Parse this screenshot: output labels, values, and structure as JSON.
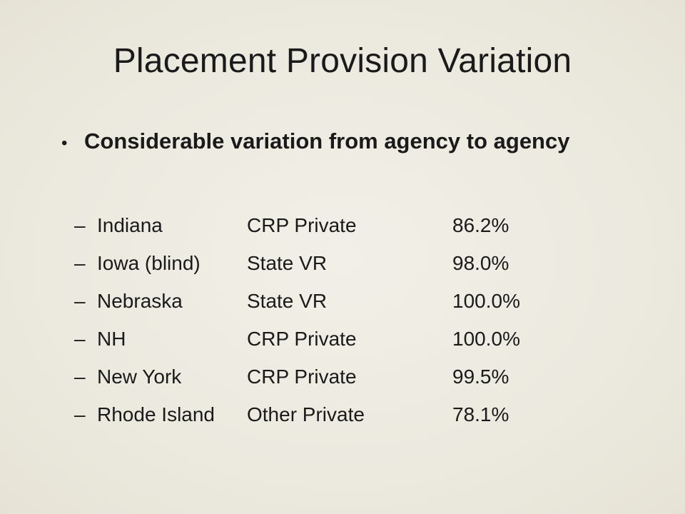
{
  "slide": {
    "title": "Placement Provision Variation",
    "bullet": {
      "marker": "•",
      "text": "Considerable variation from agency to agency"
    },
    "sub_marker": "–",
    "rows": [
      {
        "agency": "Indiana",
        "provider": "CRP Private",
        "percent": "86.2%"
      },
      {
        "agency": "Iowa (blind)",
        "provider": "State VR",
        "percent": "98.0%"
      },
      {
        "agency": "Nebraska",
        "provider": "State VR",
        "percent": "100.0%"
      },
      {
        "agency": "NH",
        "provider": "CRP Private",
        "percent": "100.0%"
      },
      {
        "agency": "New York",
        "provider": "CRP Private",
        "percent": "99.5%"
      },
      {
        "agency": "Rhode Island",
        "provider": "Other Private",
        "percent": "78.1%"
      }
    ]
  }
}
